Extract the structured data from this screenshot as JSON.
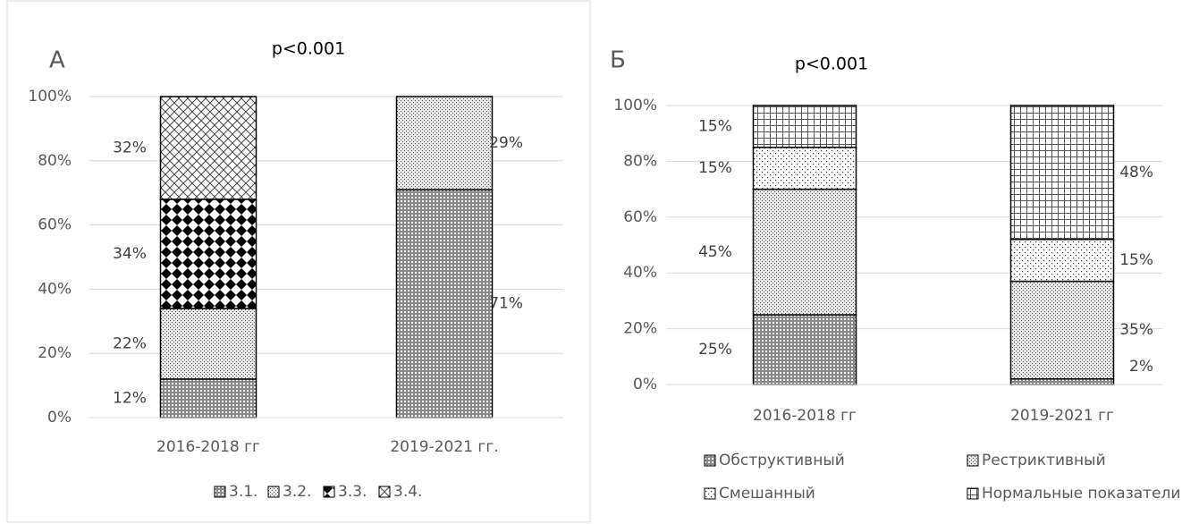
{
  "chart_data": [
    {
      "type": "bar",
      "stacked": true,
      "panel_label": "А",
      "title": "p<0.001",
      "categories": [
        "2016-2018 гг",
        "2019-2021 гг."
      ],
      "series": [
        {
          "name": "3.1.",
          "values": [
            12,
            71
          ],
          "value_labels": [
            "12%",
            "71%"
          ]
        },
        {
          "name": "3.2.",
          "values": [
            22,
            29
          ],
          "value_labels": [
            "22%",
            "29%"
          ]
        },
        {
          "name": "3.3.",
          "values": [
            34,
            0
          ],
          "value_labels": [
            "34%",
            null
          ]
        },
        {
          "name": "3.4.",
          "values": [
            32,
            0
          ],
          "value_labels": [
            "32%",
            null
          ]
        }
      ],
      "ylim": [
        0,
        100
      ],
      "yticks": [
        {
          "value": 0,
          "label": "0%"
        },
        {
          "value": 20,
          "label": "20%"
        },
        {
          "value": 40,
          "label": "40%"
        },
        {
          "value": 60,
          "label": "60%"
        },
        {
          "value": 80,
          "label": "80%"
        },
        {
          "value": 100,
          "label": "100%"
        }
      ],
      "grid": true,
      "legend": "bottom"
    },
    {
      "type": "bar",
      "stacked": true,
      "panel_label": "Б",
      "title": "p<0.001",
      "categories": [
        "2016-2018 гг",
        "2019-2021 гг"
      ],
      "series": [
        {
          "name": "Обструктивный",
          "values": [
            25,
            2
          ],
          "value_labels": [
            "25%",
            "2%"
          ]
        },
        {
          "name": "Рестриктивный",
          "values": [
            45,
            35
          ],
          "value_labels": [
            "45%",
            "35%"
          ]
        },
        {
          "name": "Смешанный",
          "values": [
            15,
            15
          ],
          "value_labels": [
            "15%",
            "15%"
          ]
        },
        {
          "name": "Нормальные показатели",
          "values": [
            15,
            48
          ],
          "value_labels": [
            "15%",
            "48%"
          ]
        }
      ],
      "ylim": [
        0,
        100
      ],
      "yticks": [
        {
          "value": 0,
          "label": "0%"
        },
        {
          "value": 20,
          "label": "20%"
        },
        {
          "value": 40,
          "label": "40%"
        },
        {
          "value": 60,
          "label": "60%"
        },
        {
          "value": 80,
          "label": "80%"
        },
        {
          "value": 100,
          "label": "100%"
        }
      ],
      "grid": true,
      "legend": "bottom"
    }
  ]
}
